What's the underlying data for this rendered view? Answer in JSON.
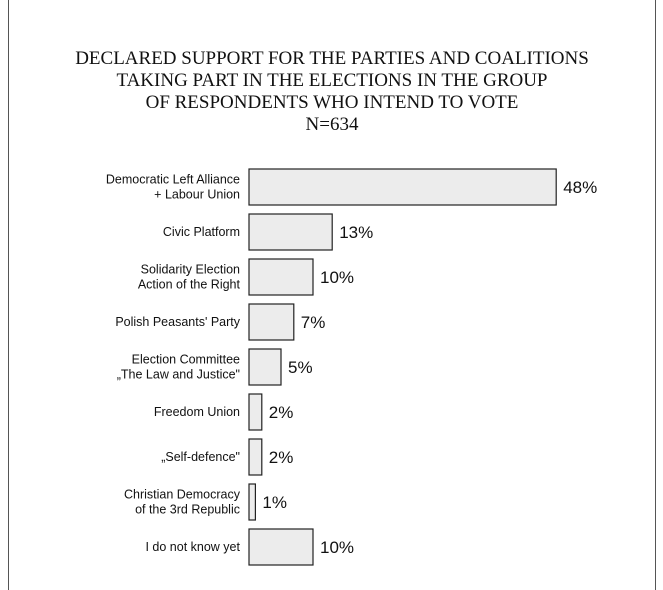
{
  "chart_data": {
    "type": "bar",
    "orientation": "horizontal",
    "title_lines": [
      "DECLARED SUPPORT FOR THE PARTIES AND COALITIONS",
      "TAKING PART IN THE ELECTIONS IN THE GROUP",
      "OF RESPONDENTS WHO INTEND TO VOTE",
      "N=634"
    ],
    "categories": [
      [
        "Democratic Left Alliance",
        "+ Labour Union"
      ],
      [
        "Civic Platform"
      ],
      [
        "Solidarity Election",
        "Action of the Right"
      ],
      [
        "Polish Peasants' Party"
      ],
      [
        "Election Committee",
        "„The Law and Justice\""
      ],
      [
        "Freedom Union"
      ],
      [
        "„Self-defence\""
      ],
      [
        "Christian Democracy",
        "of the 3rd Republic"
      ],
      [
        "I do not know yet"
      ]
    ],
    "values": [
      48,
      13,
      10,
      7,
      5,
      2,
      2,
      1,
      10
    ],
    "value_labels": [
      "48%",
      "13%",
      "10%",
      "7%",
      "5%",
      "2%",
      "2%",
      "1%",
      "10%"
    ],
    "unit": "%",
    "bar_color": "#ececec",
    "bar_edge_color": "#222222",
    "grid": false,
    "legend": "none"
  }
}
